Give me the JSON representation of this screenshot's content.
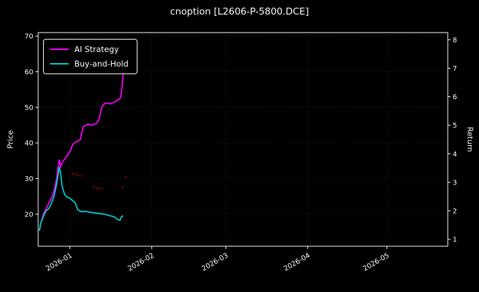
{
  "colors": {
    "background": "#000000",
    "frame": "#ffffff",
    "text": "#ffffff",
    "ai_strategy": "#ff00ff",
    "buy_and_hold": "#00ced1",
    "trade_marker": "#8b0000",
    "grid": "rgba(255,255,255,0.14)"
  },
  "chart_data": {
    "type": "line",
    "title": "cnoption [L2606-P-5800.DCE]",
    "xlabel": "",
    "ylabel_left": "Price",
    "ylabel_right": "Return",
    "x_unit": "days since 2026-01-01",
    "xlim": [
      -12,
      143
    ],
    "ylim_left": [
      11,
      71
    ],
    "ylim_right": [
      0.76,
      8.25
    ],
    "y_ticks_left": [
      20,
      30,
      40,
      50,
      60,
      70
    ],
    "y_ticks_right": [
      1,
      2,
      3,
      4,
      5,
      6,
      7,
      8
    ],
    "x_ticks": [
      {
        "day": 0,
        "label": "2026-01"
      },
      {
        "day": 31,
        "label": "2026-02"
      },
      {
        "day": 59,
        "label": "2026-03"
      },
      {
        "day": 90,
        "label": "2026-04"
      },
      {
        "day": 120,
        "label": "2026-05"
      }
    ],
    "legend_position": "upper left",
    "grid": true,
    "series": [
      {
        "name": "AI Strategy",
        "color": "#ff00ff",
        "axis": "left",
        "x": [
          -11.5,
          -11,
          -10,
          -9,
          -8,
          -7,
          -6,
          -5,
          -4.5,
          -4,
          -3.5,
          -3,
          -2,
          -1,
          0,
          1,
          2,
          3,
          4,
          5,
          6,
          7,
          8,
          9,
          10,
          11,
          12,
          13,
          14,
          15,
          16,
          17,
          18,
          19,
          19.5,
          20,
          20.5
        ],
        "y": [
          15.5,
          17.5,
          20,
          21.5,
          23,
          24.5,
          26.5,
          30,
          33,
          35.2,
          33.2,
          34.5,
          35.5,
          36.5,
          37.5,
          39.5,
          40.2,
          40.5,
          41,
          44.5,
          45,
          45.3,
          45,
          45.2,
          45.5,
          46.5,
          50,
          51,
          51.3,
          51,
          51.2,
          51.5,
          52,
          52.5,
          54,
          58,
          62
        ]
      },
      {
        "name": "Buy-and-Hold",
        "color": "#00ced1",
        "axis": "left",
        "x": [
          -11.5,
          -11,
          -10,
          -9,
          -8,
          -7,
          -6,
          -5,
          -4.5,
          -4,
          -3.5,
          -3,
          -2,
          -1,
          0,
          1,
          2,
          3,
          4,
          5,
          6,
          7,
          8,
          9,
          10,
          11,
          12,
          13,
          14,
          15,
          16,
          17,
          18,
          19,
          19.5,
          20
        ],
        "y": [
          15.5,
          17.5,
          19.5,
          21,
          21.5,
          23,
          25,
          28.5,
          31,
          33.2,
          31.5,
          28,
          25.5,
          24.8,
          24.5,
          23.8,
          23.2,
          21.2,
          20.8,
          20.7,
          20.8,
          20.6,
          20.5,
          20.4,
          20.3,
          20.2,
          20.1,
          20,
          19.8,
          19.6,
          19.4,
          19.2,
          18.5,
          18.3,
          19.3,
          19.5
        ]
      }
    ],
    "trade_markers": {
      "color": "#8b0000",
      "points": [
        [
          1,
          31.4
        ],
        [
          2,
          31.2
        ],
        [
          3,
          31.0
        ],
        [
          4.5,
          30.8
        ],
        [
          9,
          27.6
        ],
        [
          10,
          27.4
        ],
        [
          11,
          27.3
        ],
        [
          12,
          27.2
        ],
        [
          20,
          27.5
        ],
        [
          21,
          30.5
        ]
      ]
    }
  }
}
